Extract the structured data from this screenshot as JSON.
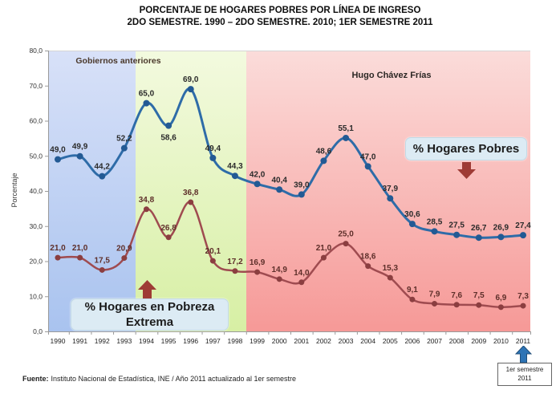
{
  "title": {
    "line1": "PORCENTAJE DE HOGARES POBRES POR LÍNEA DE INGRESO",
    "line2": "2DO SEMESTRE. 1990 – 2DO SEMESTRE. 2010; 1ER SEMESTRE 2011"
  },
  "chart_data": {
    "type": "line",
    "title": "PORCENTAJE DE HOGARES POBRES POR LÍNEA DE INGRESO 2DO SEMESTRE. 1990 – 2DO SEMESTRE. 2010; 1ER SEMESTRE 2011",
    "xlabel": "",
    "ylabel": "Porcentaje",
    "ylim": [
      0,
      80
    ],
    "ytick_step": 10,
    "grid": false,
    "categories": [
      "1990",
      "1991",
      "1992",
      "1993",
      "1994",
      "1995",
      "1996",
      "1997",
      "1998",
      "1999",
      "2000",
      "2001",
      "2002",
      "2003",
      "2004",
      "2005",
      "2006",
      "2007",
      "2008",
      "2009",
      "2010",
      "2011"
    ],
    "series": [
      {
        "name": "% Hogares Pobres",
        "values": [
          49.0,
          49.9,
          44.2,
          52.2,
          65.0,
          58.6,
          69.0,
          49.4,
          44.3,
          42.0,
          40.4,
          39.0,
          48.6,
          55.1,
          47.0,
          37.9,
          30.6,
          28.5,
          27.5,
          26.7,
          26.9,
          27.4
        ],
        "labels": [
          "49,0",
          "49,9",
          "44,2",
          "52,2",
          "65,0",
          "58,6",
          "69,0",
          "49,4",
          "44,3",
          "42,0",
          "40,4",
          "39,0",
          "48,6",
          "55,1",
          "47,0",
          "37,9",
          "30,6",
          "28,5",
          "27,5",
          "26,7",
          "26,9",
          "27,4"
        ],
        "color": "#2E6CA8",
        "marker_color": "#235A94",
        "label_color": "#2b2b2b",
        "width": 3,
        "marker_r": 4,
        "label_below": [
          5
        ]
      },
      {
        "name": "% Hogares en Pobreza Extrema",
        "values": [
          21.0,
          21.0,
          17.5,
          20.9,
          34.8,
          26.8,
          36.8,
          20.1,
          17.2,
          16.9,
          14.9,
          14.0,
          21.0,
          25.0,
          18.6,
          15.3,
          9.1,
          7.9,
          7.6,
          7.5,
          6.9,
          7.3
        ],
        "labels": [
          "21,0",
          "21,0",
          "17,5",
          "20,9",
          "34,8",
          "26,8",
          "36,8",
          "20,1",
          "17,2",
          "16,9",
          "14,9",
          "14,0",
          "21,0",
          "25,0",
          "18,6",
          "15,3",
          "9,1",
          "7,9",
          "7,6",
          "7,5",
          "6,9",
          "7,3"
        ],
        "color": "#9F4B50",
        "marker_color": "#8B3E40",
        "label_color": "#5E2F2A",
        "width": 2.5,
        "marker_r": 3.5,
        "label_below": []
      }
    ],
    "regions": [
      {
        "label": "Gobiernos anteriores",
        "color_top": "#D8E1F8",
        "color_bottom": "#A9C3EF"
      },
      {
        "label": "",
        "color_top": "#F3FADF",
        "color_bottom": "#D7EFA4"
      },
      {
        "label": "Hugo Chávez Frías",
        "color_top": "#FBDCDA",
        "color_bottom": "#F69997"
      }
    ],
    "legend_position": "annotations-inside-plot"
  },
  "annotations": {
    "pobres_label": "% Hogares Pobres",
    "extrema_line1": "% Hogares en Pobreza",
    "extrema_line2": "Extrema",
    "first_semester_line1": "1er semestre",
    "first_semester_line2": "2011"
  },
  "colors": {
    "arrow_red": "#9E3B35",
    "arrow_blue": "#2E74B5",
    "arrow_blue_edge": "#1F4E79",
    "axis": "#9a9a9a",
    "callout_bg": "#dcebf4"
  },
  "footer": {
    "prefix": "Fuente:",
    "text": "Instituto Nacional de Estadística, INE / Año 2011 actualizado al 1er semestre"
  }
}
